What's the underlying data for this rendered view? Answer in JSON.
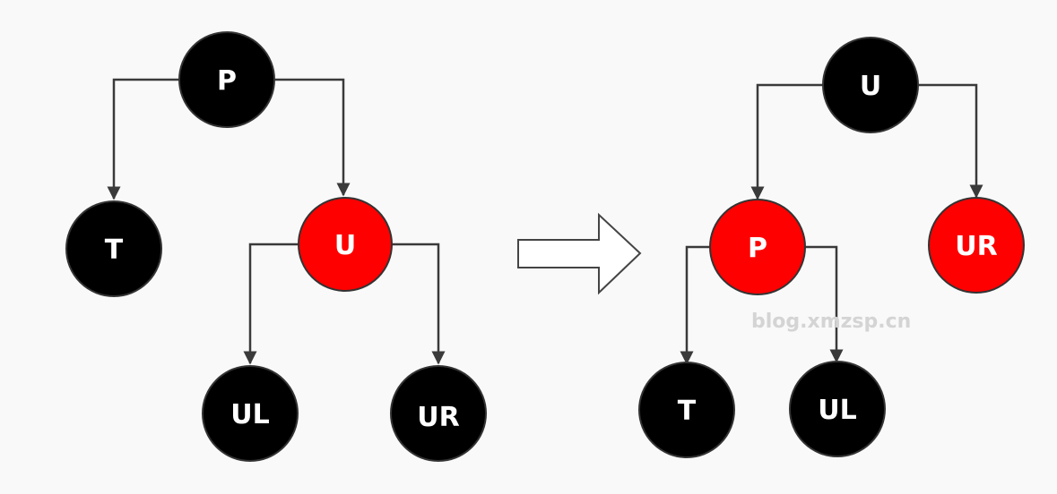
{
  "colors": {
    "black_node": "#000000",
    "red_node": "#ff0000",
    "label": "#ffffff",
    "edge": "#3a3a3a",
    "background": "#f9f9f9",
    "watermark": "#d4d4d4"
  },
  "before_tree": {
    "nodes": {
      "P": {
        "label": "P",
        "color": "black"
      },
      "T": {
        "label": "T",
        "color": "black"
      },
      "U": {
        "label": "U",
        "color": "red"
      },
      "UL": {
        "label": "UL",
        "color": "black"
      },
      "UR": {
        "label": "UR",
        "color": "black"
      }
    },
    "edges": [
      {
        "from": "P",
        "to": "T"
      },
      {
        "from": "P",
        "to": "U"
      },
      {
        "from": "U",
        "to": "UL"
      },
      {
        "from": "U",
        "to": "UR"
      }
    ]
  },
  "transform_arrow_icon": "right-arrow-icon",
  "after_tree": {
    "nodes": {
      "U": {
        "label": "U",
        "color": "black"
      },
      "P": {
        "label": "P",
        "color": "red"
      },
      "UR": {
        "label": "UR",
        "color": "red"
      },
      "T": {
        "label": "T",
        "color": "black"
      },
      "UL": {
        "label": "UL",
        "color": "black"
      }
    },
    "edges": [
      {
        "from": "U",
        "to": "P"
      },
      {
        "from": "U",
        "to": "UR"
      },
      {
        "from": "P",
        "to": "T"
      },
      {
        "from": "P",
        "to": "UL"
      }
    ]
  },
  "watermark": "blog.xmzsp.cn"
}
